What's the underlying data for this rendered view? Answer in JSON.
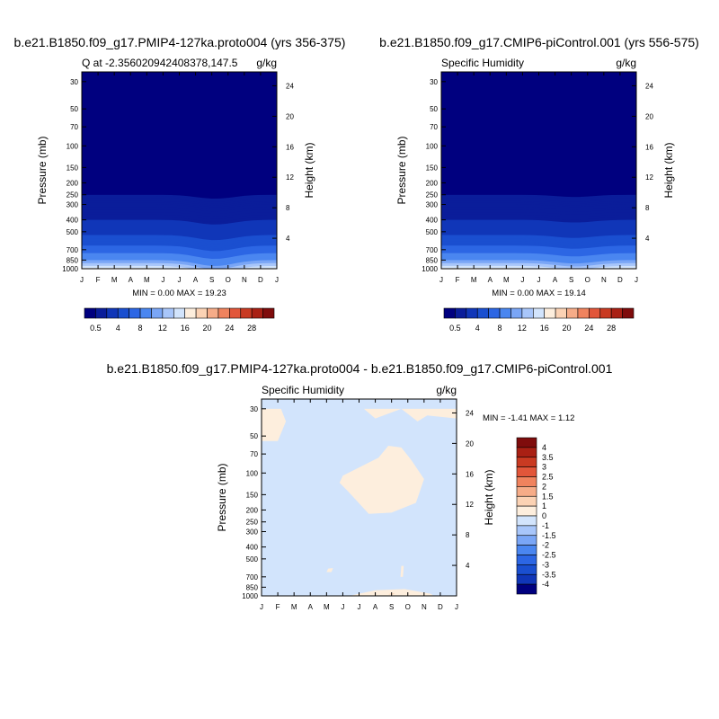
{
  "chart_data": [
    {
      "type": "heatmap",
      "title": "b.e21.B1850.f09_g17.PMIP4-127ka.proto004 (yrs 356-375)",
      "subtitle_left": "Q at -2.356020942408378,147.5",
      "subtitle_right": "g/kg",
      "ylabel": "Pressure (mb)",
      "ylabel_right": "Height (km)",
      "x_ticks": [
        "J",
        "F",
        "M",
        "A",
        "M",
        "J",
        "J",
        "A",
        "S",
        "O",
        "N",
        "D",
        "J"
      ],
      "y_ticks": [
        30,
        50,
        70,
        100,
        150,
        200,
        250,
        300,
        400,
        500,
        700,
        850,
        1000
      ],
      "y_ticks_right": [
        24,
        20,
        16,
        12,
        8,
        4
      ],
      "ylim": [
        1000,
        25
      ],
      "minmax": "MIN =   0.00 MAX =  19.23",
      "colorbar": {
        "labels": [
          "0.5",
          "4",
          "8",
          "12",
          "16",
          "20",
          "24",
          "28"
        ],
        "colors": [
          "#00007f",
          "#0a1d9a",
          "#1036b8",
          "#1a4fd0",
          "#2c66e4",
          "#4a86f0",
          "#7aa6f6",
          "#a8c6fa",
          "#d2e4fc",
          "#fdeedd",
          "#fbd2b4",
          "#f6ac88",
          "#f0835e",
          "#e2563a",
          "#c93a22",
          "#a92014",
          "#7f0c0c"
        ]
      },
      "profile": [
        {
          "p": 30,
          "value": 0.1
        },
        {
          "p": 250,
          "value": 0.5
        },
        {
          "p": 300,
          "value": 1
        },
        {
          "p": 400,
          "value": 2
        },
        {
          "p": 500,
          "value": 3.5
        },
        {
          "p": 600,
          "value": 5
        },
        {
          "p": 700,
          "value": 7
        },
        {
          "p": 850,
          "value": 10
        },
        {
          "p": 925,
          "value": 13
        },
        {
          "p": 1000,
          "value": 17
        }
      ]
    },
    {
      "type": "heatmap",
      "title": "b.e21.B1850.f09_g17.CMIP6-piControl.001 (yrs 556-575)",
      "subtitle_left": "Specific Humidity",
      "subtitle_right": "g/kg",
      "ylabel": "Pressure (mb)",
      "ylabel_right": "Height (km)",
      "x_ticks": [
        "J",
        "F",
        "M",
        "A",
        "M",
        "J",
        "J",
        "A",
        "S",
        "O",
        "N",
        "D",
        "J"
      ],
      "y_ticks": [
        30,
        50,
        70,
        100,
        150,
        200,
        250,
        300,
        400,
        500,
        700,
        850,
        1000
      ],
      "y_ticks_right": [
        24,
        20,
        16,
        12,
        8,
        4
      ],
      "ylim": [
        1000,
        25
      ],
      "minmax": "MIN =   0.00 MAX =  19.14",
      "colorbar": {
        "labels": [
          "0.5",
          "4",
          "8",
          "12",
          "16",
          "20",
          "24",
          "28"
        ],
        "colors": [
          "#00007f",
          "#0a1d9a",
          "#1036b8",
          "#1a4fd0",
          "#2c66e4",
          "#4a86f0",
          "#7aa6f6",
          "#a8c6fa",
          "#d2e4fc",
          "#fdeedd",
          "#fbd2b4",
          "#f6ac88",
          "#f0835e",
          "#e2563a",
          "#c93a22",
          "#a92014",
          "#7f0c0c"
        ]
      },
      "profile": [
        {
          "p": 30,
          "value": 0.1
        },
        {
          "p": 250,
          "value": 0.5
        },
        {
          "p": 300,
          "value": 1
        },
        {
          "p": 400,
          "value": 2
        },
        {
          "p": 500,
          "value": 3.5
        },
        {
          "p": 600,
          "value": 5
        },
        {
          "p": 700,
          "value": 7
        },
        {
          "p": 850,
          "value": 10
        },
        {
          "p": 925,
          "value": 13
        },
        {
          "p": 1000,
          "value": 17
        }
      ]
    },
    {
      "type": "heatmap",
      "title": "b.e21.B1850.f09_g17.PMIP4-127ka.proto004 - b.e21.B1850.f09_g17.CMIP6-piControl.001",
      "subtitle_left": "Specific Humidity",
      "subtitle_right": "g/kg",
      "ylabel": "Pressure (mb)",
      "ylabel_right": "Height (km)",
      "x_ticks": [
        "J",
        "F",
        "M",
        "A",
        "M",
        "J",
        "J",
        "A",
        "S",
        "O",
        "N",
        "D",
        "J"
      ],
      "y_ticks": [
        30,
        50,
        70,
        100,
        150,
        200,
        250,
        300,
        400,
        500,
        700,
        850,
        1000
      ],
      "y_ticks_right": [
        24,
        20,
        16,
        12,
        8,
        4
      ],
      "ylim": [
        1000,
        25
      ],
      "minmax": "MIN =  -1.41 MAX =   1.12",
      "colorbar": {
        "labels": [
          "4",
          "3.5",
          "3",
          "2.5",
          "2",
          "1.5",
          "1",
          "0",
          "-1",
          "-1.5",
          "-2",
          "-2.5",
          "-3",
          "-3.5",
          "-4"
        ],
        "colors": [
          "#7f0c0c",
          "#a92014",
          "#c93a22",
          "#e2563a",
          "#f0835e",
          "#f6ac88",
          "#fbd2b4",
          "#fdeedd",
          "#d2e4fc",
          "#a8c6fa",
          "#7aa6f6",
          "#4a86f0",
          "#2c66e4",
          "#1a4fd0",
          "#1036b8",
          "#00007f"
        ]
      },
      "background_value": -0.5,
      "regions": [
        {
          "value": 0.5,
          "months": [
            0,
            1.2,
            1.5,
            1,
            0
          ],
          "pressures": [
            30,
            30,
            38,
            55,
            55
          ]
        },
        {
          "value": 0.5,
          "months": [
            6.3,
            12,
            12,
            10.2,
            9.6,
            8.6,
            7,
            6.3
          ],
          "pressures": [
            30,
            30,
            36,
            34,
            38,
            30,
            36,
            30
          ]
        },
        {
          "value": 0.5,
          "months": [
            5,
            7.2,
            7.8,
            8.6,
            9.2,
            10,
            9.5,
            8,
            6.6,
            5.3,
            4.8
          ],
          "pressures": [
            105,
            75,
            60,
            62,
            78,
            112,
            175,
            210,
            215,
            140,
            120
          ]
        },
        {
          "value": 0.5,
          "months": [
            5.4,
            7,
            8.8,
            10.4,
            10.6,
            7.8,
            5.4
          ],
          "pressures": [
            1000,
            900,
            880,
            960,
            1000,
            1000,
            1000
          ]
        },
        {
          "value": -1,
          "months": [
            0.8,
            1.7,
            2.5,
            2.8,
            2.1,
            0.9
          ],
          "pressures": [
            730,
            700,
            760,
            900,
            1000,
            900
          ]
        },
        {
          "value": 1,
          "months": [
            7.9,
            8.2,
            8.1,
            7.8
          ],
          "pressures": [
            960,
            950,
            975,
            975
          ]
        },
        {
          "value": 0.5,
          "months": [
            4.1,
            4.4,
            4.3,
            4.0
          ],
          "pressures": [
            600,
            595,
            640,
            640
          ]
        },
        {
          "value": 0.5,
          "months": [
            8.6,
            8.75,
            8.7,
            8.55
          ],
          "pressures": [
            570,
            570,
            700,
            700
          ]
        }
      ]
    }
  ]
}
